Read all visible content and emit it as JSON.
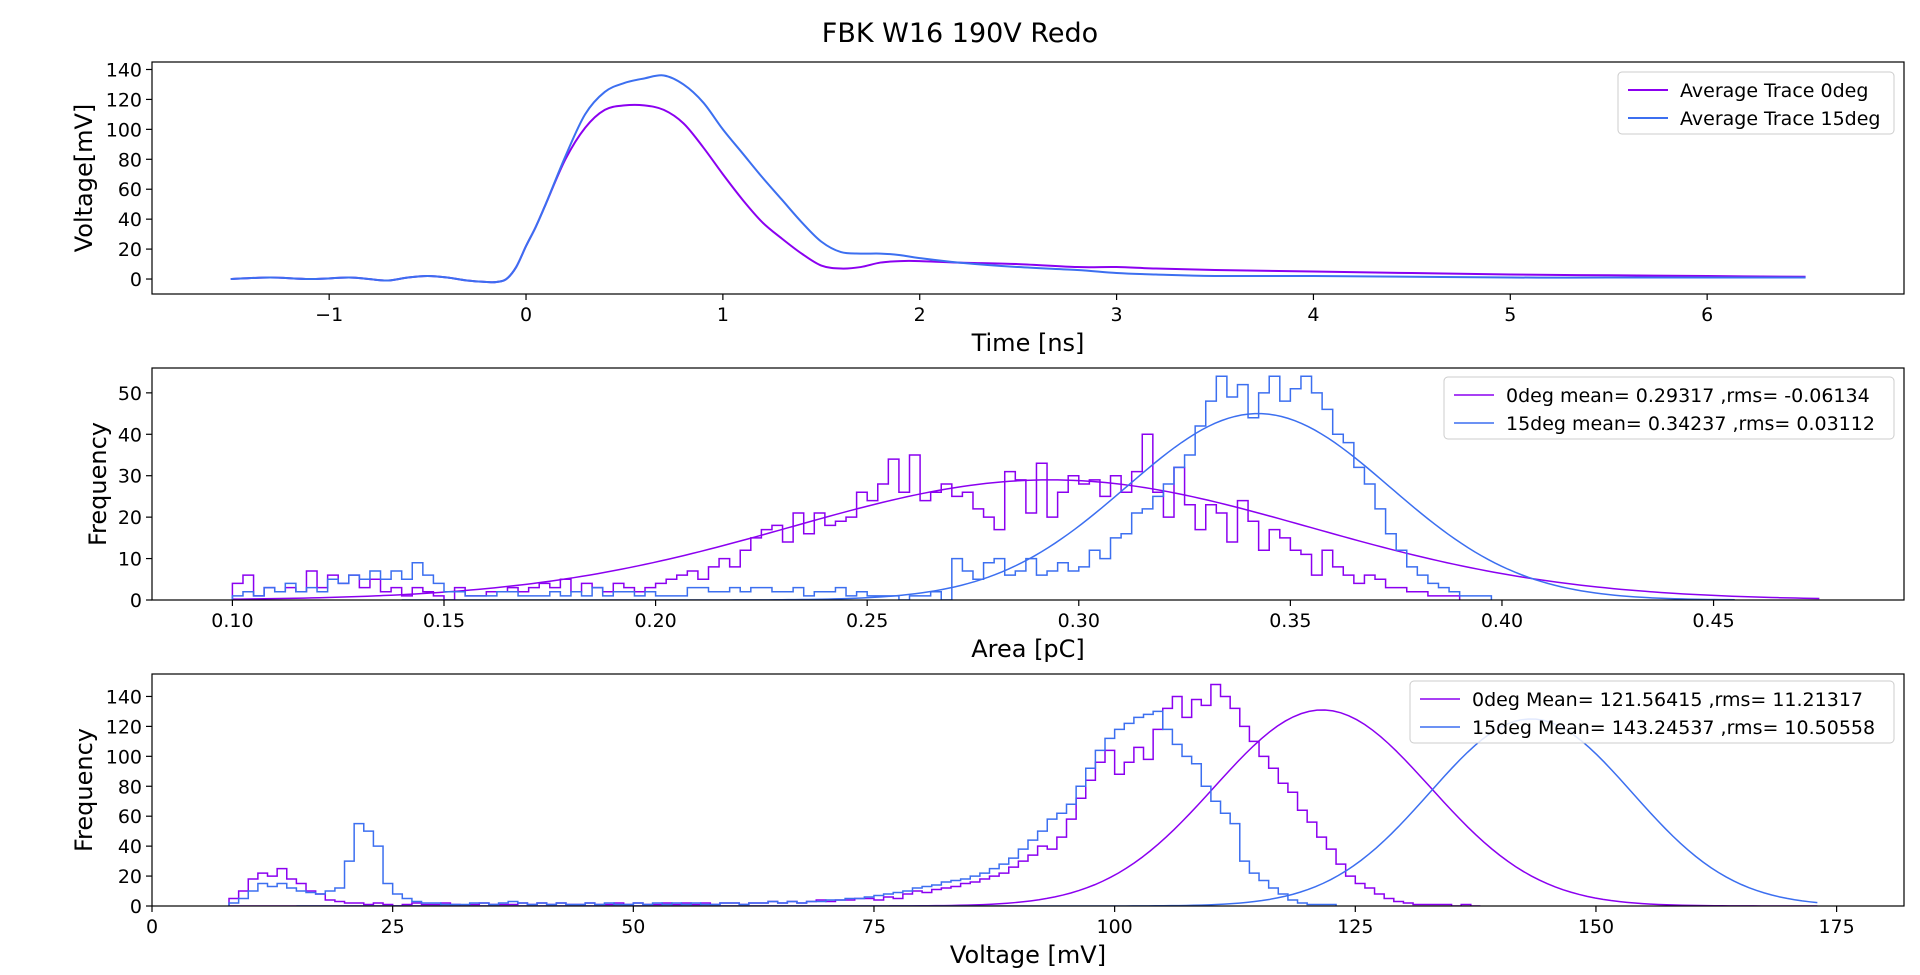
{
  "figure": {
    "title": "FBK W16 190V Redo"
  },
  "colors": {
    "series_0deg": "#8b00f0",
    "series_15deg": "#3c6ff0"
  },
  "chart_data": [
    {
      "type": "line",
      "xlabel": "Time [ns]",
      "ylabel": "Voltage[mV]",
      "xlim": [
        -1.9,
        7.0
      ],
      "ylim": [
        -10,
        145
      ],
      "xticks": [
        -1,
        0,
        1,
        2,
        3,
        4,
        5,
        6
      ],
      "xtick_labels": [
        "−1",
        "0",
        "1",
        "2",
        "3",
        "4",
        "5",
        "6"
      ],
      "yticks": [
        0,
        20,
        40,
        60,
        80,
        100,
        120,
        140
      ],
      "ytick_labels": [
        "0",
        "20",
        "40",
        "60",
        "80",
        "100",
        "120",
        "140"
      ],
      "legend_position": "top-right",
      "series": [
        {
          "name": "Average Trace 0deg",
          "x": [
            -1.5,
            -1.3,
            -1.1,
            -0.9,
            -0.8,
            -0.7,
            -0.6,
            -0.5,
            -0.4,
            -0.3,
            -0.2,
            -0.15,
            -0.1,
            -0.05,
            0,
            0.05,
            0.1,
            0.2,
            0.3,
            0.4,
            0.5,
            0.6,
            0.7,
            0.8,
            0.9,
            1.0,
            1.1,
            1.2,
            1.3,
            1.4,
            1.5,
            1.6,
            1.7,
            1.8,
            1.9,
            2.0,
            2.2,
            2.5,
            2.8,
            3.0,
            3.2,
            3.5,
            4.0,
            4.5,
            5.0,
            5.5,
            6.0,
            6.5
          ],
          "y": [
            0,
            1,
            0,
            1,
            0,
            -1,
            1,
            2,
            1,
            -1,
            -2,
            -2,
            0,
            8,
            22,
            35,
            50,
            80,
            101,
            113,
            116,
            116,
            113,
            104,
            88,
            70,
            53,
            38,
            27,
            17,
            9,
            7,
            8,
            11,
            12,
            12,
            11,
            10,
            8,
            8,
            7,
            6,
            5,
            4,
            3,
            2.5,
            2,
            1.5
          ]
        },
        {
          "name": "Average Trace 15deg",
          "x": [
            -1.5,
            -1.3,
            -1.1,
            -0.9,
            -0.8,
            -0.7,
            -0.6,
            -0.5,
            -0.4,
            -0.3,
            -0.2,
            -0.15,
            -0.1,
            -0.05,
            0,
            0.05,
            0.1,
            0.2,
            0.3,
            0.4,
            0.5,
            0.6,
            0.7,
            0.8,
            0.9,
            1.0,
            1.1,
            1.2,
            1.3,
            1.4,
            1.5,
            1.6,
            1.7,
            1.8,
            1.9,
            2.0,
            2.2,
            2.5,
            2.8,
            3.0,
            3.2,
            3.5,
            4.0,
            4.5,
            5.0,
            5.5,
            6.0,
            6.5
          ],
          "y": [
            0,
            1,
            0,
            1,
            0,
            -1,
            1,
            2,
            1,
            -1,
            -2,
            -2,
            0,
            8,
            22,
            35,
            50,
            82,
            110,
            125,
            131,
            134,
            136,
            130,
            118,
            100,
            84,
            68,
            53,
            38,
            25,
            18,
            17,
            17,
            16,
            14,
            11,
            8,
            6,
            4,
            3,
            2,
            2,
            1.5,
            1,
            1,
            1,
            1
          ]
        }
      ]
    },
    {
      "type": "histogram",
      "xlabel": "Area [pC]",
      "ylabel": "Frequency",
      "xlim": [
        0.081,
        0.495
      ],
      "ylim": [
        0,
        56
      ],
      "xticks": [
        0.1,
        0.15,
        0.2,
        0.25,
        0.3,
        0.35,
        0.4,
        0.45
      ],
      "xtick_labels": [
        "0.10",
        "0.15",
        "0.20",
        "0.25",
        "0.30",
        "0.35",
        "0.40",
        "0.45"
      ],
      "yticks": [
        0,
        10,
        20,
        30,
        40,
        50
      ],
      "ytick_labels": [
        "0",
        "10",
        "20",
        "30",
        "40",
        "50"
      ],
      "legend_position": "top-right",
      "bin_start": 0.1,
      "bin_width": 0.0025,
      "series": [
        {
          "name": "0deg mean= 0.29317 ,rms= -0.06134",
          "counts": [
            4,
            6,
            1,
            3,
            2,
            3,
            2,
            7,
            3,
            6,
            4,
            6,
            3,
            5,
            2,
            3,
            1,
            3,
            2,
            1,
            0,
            3,
            1,
            1,
            2,
            2,
            3,
            2,
            3,
            4,
            3,
            5,
            2,
            4,
            3,
            2,
            4,
            3,
            2,
            3,
            4,
            5,
            6,
            7,
            5,
            8,
            10,
            8,
            12,
            15,
            17,
            18,
            14,
            21,
            16,
            21,
            18,
            19,
            20,
            26,
            24,
            28,
            34,
            26,
            35,
            24,
            26,
            28,
            25,
            26,
            22,
            20,
            17,
            31,
            29,
            21,
            33,
            20,
            26,
            30,
            28,
            29,
            25,
            30,
            26,
            31,
            40,
            26,
            20,
            32,
            23,
            17,
            23,
            21,
            14,
            24,
            19,
            12,
            17,
            15,
            12,
            11,
            6,
            12,
            8,
            6,
            4,
            6,
            5,
            3,
            3,
            2,
            2,
            1,
            1,
            1
          ],
          "fit": {
            "mu": 0.29317,
            "sigma": 0.06134,
            "amp": 29,
            "x_range": [
              0.1,
              0.475
            ]
          }
        },
        {
          "name": "15deg mean= 0.34237 ,rms= 0.03112",
          "counts": [
            1,
            2,
            1,
            3,
            2,
            4,
            2,
            3,
            2,
            5,
            4,
            6,
            5,
            7,
            5,
            7,
            5,
            9,
            6,
            4,
            2,
            2,
            1,
            1,
            1,
            2,
            2,
            1,
            1,
            1,
            2,
            1,
            2,
            1,
            3,
            1,
            2,
            2,
            1,
            2,
            1,
            1,
            1,
            3,
            3,
            2,
            2,
            3,
            2,
            3,
            3,
            2,
            2,
            3,
            1,
            2,
            2,
            3,
            1,
            2,
            1,
            1,
            1,
            0,
            1,
            1,
            2,
            0,
            10,
            7,
            5,
            9,
            10,
            6,
            7,
            10,
            6,
            7,
            9,
            7,
            8,
            12,
            10,
            15,
            16,
            21,
            22,
            25,
            28,
            32,
            35,
            42,
            48,
            54,
            49,
            52,
            44,
            50,
            54,
            48,
            51,
            54,
            50,
            46,
            40,
            38,
            32,
            28,
            22,
            16,
            12,
            8,
            6,
            4,
            3,
            2,
            1,
            1,
            1
          ],
          "fit": {
            "mu": 0.34237,
            "sigma": 0.03112,
            "amp": 45,
            "x_range": [
              0.14,
              0.455
            ]
          }
        }
      ]
    },
    {
      "type": "histogram",
      "xlabel": "Voltage [mV]",
      "ylabel": "Frequency",
      "xlim": [
        0,
        182
      ],
      "ylim": [
        0,
        155
      ],
      "xticks": [
        0,
        25,
        50,
        75,
        100,
        125,
        150,
        175
      ],
      "xtick_labels": [
        "0",
        "25",
        "50",
        "75",
        "100",
        "125",
        "150",
        "175"
      ],
      "yticks": [
        0,
        20,
        40,
        60,
        80,
        100,
        120,
        140
      ],
      "ytick_labels": [
        "0",
        "20",
        "40",
        "60",
        "80",
        "100",
        "120",
        "140"
      ],
      "legend_position": "top-right",
      "bin_start": 8,
      "bin_width": 1.0,
      "series": [
        {
          "name": "0deg Mean= 121.56415 ,rms= 11.21317",
          "counts": [
            5,
            10,
            18,
            22,
            20,
            25,
            18,
            15,
            10,
            8,
            4,
            3,
            2,
            2,
            1,
            2,
            1,
            0,
            1,
            2,
            1,
            1,
            2,
            1,
            0,
            1,
            2,
            1,
            1,
            1,
            2,
            1,
            2,
            1,
            2,
            1,
            1,
            2,
            1,
            1,
            2,
            1,
            2,
            1,
            1,
            2,
            1,
            2,
            1,
            2,
            1,
            2,
            2,
            1,
            2,
            2,
            3,
            2,
            3,
            2,
            3,
            4,
            3,
            4,
            4,
            5,
            5,
            4,
            6,
            5,
            8,
            10,
            9,
            11,
            12,
            13,
            15,
            16,
            18,
            20,
            22,
            26,
            30,
            34,
            40,
            38,
            46,
            58,
            72,
            84,
            96,
            104,
            88,
            96,
            106,
            98,
            118,
            132,
            140,
            126,
            138,
            134,
            148,
            140,
            132,
            120,
            110,
            100,
            92,
            82,
            76,
            64,
            56,
            46,
            38,
            28,
            20,
            15,
            12,
            8,
            5,
            3,
            2,
            1,
            1,
            1,
            1,
            0,
            1,
            0
          ],
          "fit": {
            "mu": 121.56415,
            "sigma": 11.21317,
            "amp": 131,
            "x_range": [
              8,
              173
            ]
          }
        },
        {
          "name": "15deg Mean= 143.24537 ,rms= 10.50558",
          "counts": [
            2,
            5,
            10,
            15,
            13,
            15,
            12,
            10,
            9,
            8,
            10,
            12,
            30,
            55,
            50,
            40,
            15,
            8,
            5,
            3,
            2,
            2,
            1,
            1,
            1,
            2,
            2,
            1,
            2,
            3,
            2,
            1,
            2,
            1,
            2,
            1,
            1,
            2,
            1,
            2,
            1,
            1,
            2,
            1,
            2,
            1,
            2,
            1,
            2,
            1,
            1,
            2,
            2,
            1,
            2,
            2,
            3,
            2,
            3,
            2,
            3,
            3,
            4,
            4,
            5,
            5,
            6,
            7,
            8,
            9,
            10,
            12,
            13,
            14,
            16,
            17,
            18,
            20,
            22,
            25,
            28,
            32,
            38,
            44,
            50,
            58,
            62,
            68,
            80,
            92,
            104,
            112,
            118,
            122,
            126,
            128,
            130,
            118,
            108,
            100,
            95,
            80,
            70,
            62,
            55,
            30,
            22,
            17,
            12,
            8,
            4,
            2,
            1,
            1,
            1
          ],
          "fit": {
            "mu": 143.24537,
            "sigma": 10.50558,
            "amp": 125,
            "x_range": [
              15,
              173
            ]
          }
        }
      ]
    }
  ]
}
